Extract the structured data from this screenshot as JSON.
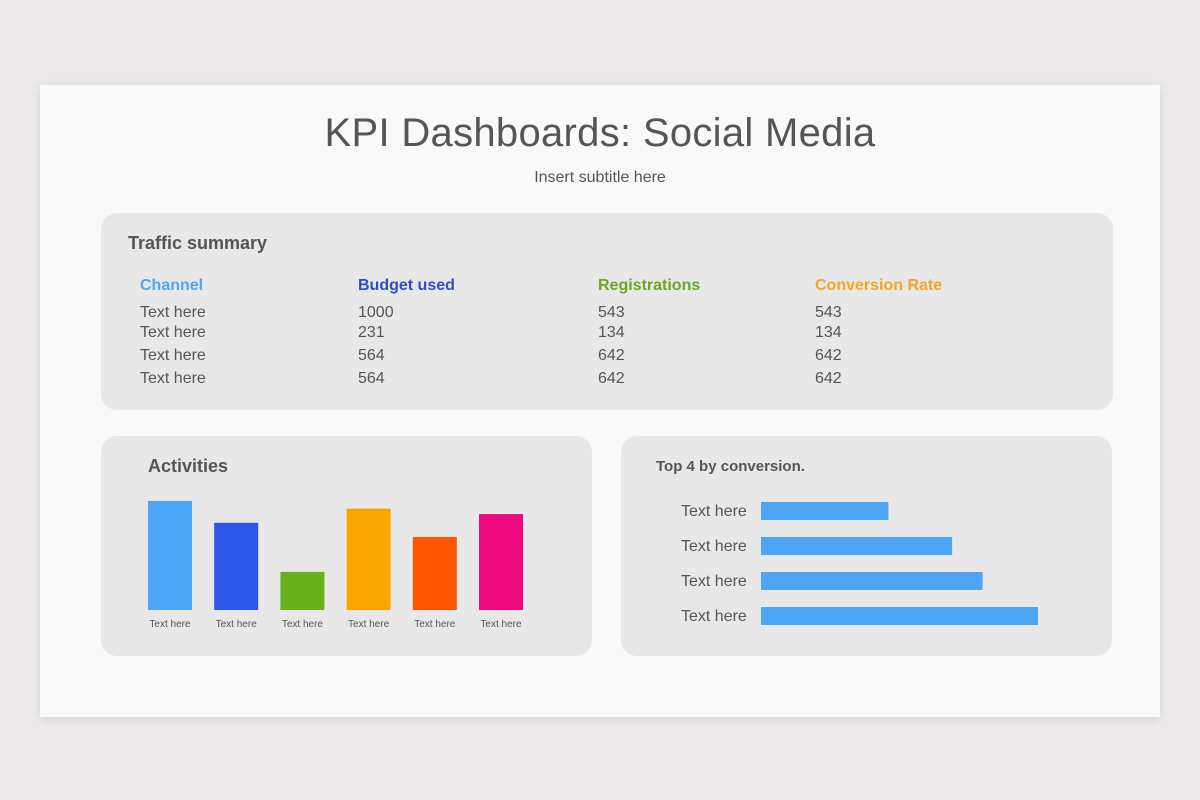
{
  "header": {
    "title": "KPI Dashboards: Social Media",
    "subtitle": "Insert subtitle here"
  },
  "traffic": {
    "title": "Traffic summary",
    "columns": [
      {
        "label": "Channel",
        "color": "#4da6f5"
      },
      {
        "label": "Budget  used",
        "color": "#2b4fc4"
      },
      {
        "label": "Registrations",
        "color": "#6aa823"
      },
      {
        "label": "Conversion  Rate",
        "color": "#f5a623"
      }
    ],
    "rows": [
      [
        "Text here",
        "1000",
        "543",
        "543"
      ],
      [
        "Text here",
        "231",
        "134",
        "134"
      ],
      [
        "Text here",
        "564",
        "642",
        "642"
      ],
      [
        "Text here",
        "564",
        "642",
        "642"
      ]
    ]
  },
  "chart_data": [
    {
      "type": "bar",
      "title": "Activities",
      "categories": [
        "Text here",
        "Text here",
        "Text here",
        "Text here",
        "Text here",
        "Text here"
      ],
      "values": [
        100,
        80,
        35,
        93,
        67,
        88
      ],
      "colors": [
        "#4da6f5",
        "#2b56e8",
        "#6ab01d",
        "#fba500",
        "#ff5500",
        "#f0087e"
      ]
    },
    {
      "type": "bar",
      "orientation": "horizontal",
      "title": "Top 4 by conversion.",
      "categories": [
        "Text here",
        "Text here",
        "Text here",
        "Text here"
      ],
      "values": [
        46,
        69,
        80,
        100
      ],
      "color": "#4da6f5"
    }
  ]
}
